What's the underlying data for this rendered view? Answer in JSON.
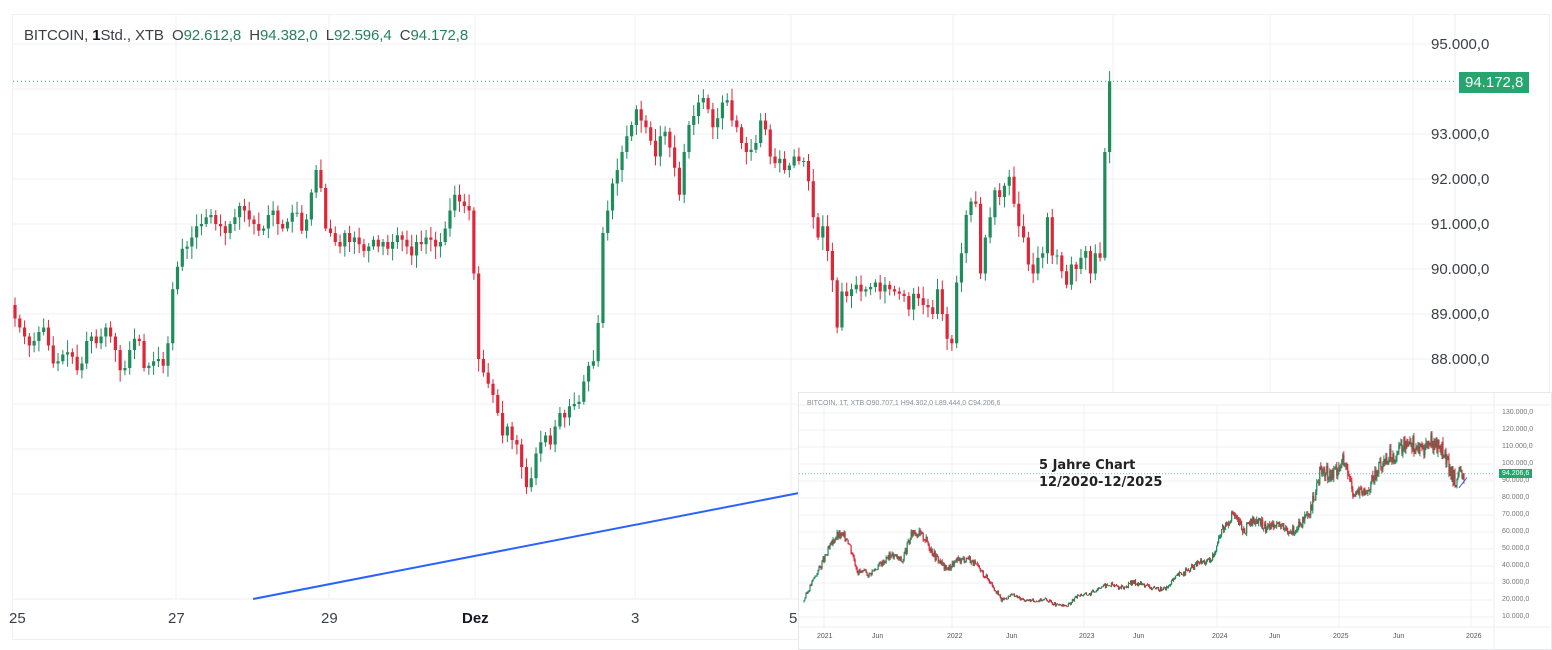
{
  "main": {
    "legend": {
      "symbol": "BITCOIN,",
      "interval_num": "1",
      "interval_unit": "Std.,",
      "source": "XTB",
      "o_label": "O",
      "o": "92.612,8",
      "h_label": "H",
      "h": "94.382,0",
      "l_label": "L",
      "l": "92.596,4",
      "c_label": "C",
      "c": "94.172,8"
    },
    "last_price": "94.172,8",
    "price_axis": [
      "95.000,0",
      "93.000,0",
      "92.000,0",
      "91.000,0",
      "90.000,0",
      "89.000,0",
      "88.000,0"
    ],
    "time_axis": [
      "25",
      "27",
      "29",
      "Dez",
      "3",
      "5"
    ]
  },
  "inset": {
    "legend": "BITCOIN, 1T, XTB O90.707,1 H94.302,0 L89.444,0 C94.206,6",
    "last_price": "94.206,6",
    "price_axis": [
      "130.000,0",
      "120.000,0",
      "110.000,0",
      "100.000,0",
      "90.000,0",
      "80.000,0",
      "70.000,0",
      "60.000,0",
      "50.000,0",
      "40.000,0",
      "30.000,0",
      "20.000,0",
      "10.000,0"
    ],
    "time_axis": [
      "2021",
      "Jun",
      "2022",
      "Jun",
      "2023",
      "Jun",
      "2024",
      "Jun",
      "2025",
      "Jun",
      "2026"
    ],
    "annotation_line1": "5 Jahre Chart",
    "annotation_line2": "12/2020-12/2025"
  },
  "colors": {
    "up": "#1f8c5c",
    "down": "#dc2738",
    "trendline": "#2962ff",
    "last_price_bg": "#26a66e",
    "grid": "#f0f1f3"
  },
  "chart_data": [
    {
      "type": "candlestick",
      "title": "BITCOIN, 1Std., XTB",
      "xlabel": "",
      "ylabel": "",
      "ylim": [
        87400,
        95600
      ],
      "grid": true,
      "x_ticks": [
        "25",
        "27",
        "29",
        "Dez",
        "3",
        "5"
      ],
      "y_ticks": [
        95000,
        93000,
        92000,
        91000,
        90000,
        89000,
        88000
      ],
      "last": {
        "open": 92612.8,
        "high": 94382.0,
        "low": 92596.4,
        "close": 94172.8
      },
      "close_series": [
        88900,
        88700,
        88500,
        88300,
        88400,
        88600,
        88700,
        88300,
        87900,
        87950,
        88100,
        88150,
        88050,
        87750,
        87900,
        88400,
        88500,
        88350,
        88500,
        88700,
        88500,
        88200,
        87750,
        87800,
        88200,
        88450,
        88400,
        87800,
        87850,
        87950,
        88000,
        87850,
        88350,
        89550,
        90050,
        90450,
        90500,
        90700,
        90950,
        91000,
        91150,
        91200,
        91000,
        90950,
        90800,
        91000,
        91150,
        91400,
        91300,
        91100,
        91000,
        90850,
        90900,
        91200,
        91300,
        91000,
        90900,
        91050,
        91250,
        91250,
        90850,
        91100,
        91700,
        92200,
        91800,
        90900,
        90800,
        90600,
        90500,
        90800,
        90600,
        90700,
        90550,
        90400,
        90500,
        90650,
        90500,
        90600,
        90450,
        90600,
        90750,
        90650,
        90500,
        90300,
        90600,
        90550,
        90700,
        90650,
        90500,
        90600,
        90900,
        91300,
        91650,
        91500,
        91400,
        91300,
        89900,
        88000,
        87700,
        87450,
        87200,
        86800,
        86300,
        86500,
        86200,
        86100,
        85600,
        85150,
        85350,
        85900,
        86150,
        86300,
        86100,
        86500,
        86800,
        86700,
        86950,
        87000,
        87050,
        87500,
        87850,
        87950,
        88800,
        90800,
        91300,
        91900,
        92200,
        92600,
        92950,
        93200,
        93550,
        93300,
        93150,
        92850,
        92500,
        92950,
        93050,
        92700,
        92250,
        91650,
        92600,
        93200,
        93400,
        93700,
        93800,
        93550,
        93150,
        93350,
        93700,
        93750,
        93300,
        93150,
        92800,
        92600,
        92650,
        92800,
        93300,
        93100,
        92500,
        92350,
        92450,
        92200,
        92300,
        92500,
        92400,
        92400,
        91950,
        91150,
        90700,
        90950,
        90400,
        89750,
        88700,
        89500,
        89400,
        89550,
        89650,
        89500,
        89550,
        89600,
        89700,
        89500,
        89650,
        89550,
        89500,
        89450,
        89400,
        89100,
        89450,
        89350,
        89200,
        89150,
        89000,
        89550,
        89000,
        88450,
        88350,
        89700,
        90350,
        91200,
        91500,
        91450,
        89900,
        90700,
        91150,
        91750,
        91600,
        91850,
        92050,
        91450,
        90950,
        90700,
        90100,
        89900,
        90250,
        90350,
        91150,
        90300,
        90300,
        89950,
        89650,
        90100,
        90000,
        90250,
        90400,
        89900,
        90350,
        90250,
        92600,
        94172.8
      ]
    },
    {
      "type": "candlestick",
      "title": "BITCOIN, 1T, XTB (5 Jahre Chart 12/2020-12/2025)",
      "ylim": [
        5000,
        135000
      ],
      "x_ticks": [
        "2021",
        "Jun",
        "2022",
        "Jun",
        "2023",
        "Jun",
        "2024",
        "Jun",
        "2025",
        "Jun",
        "2026"
      ],
      "y_ticks": [
        130000,
        120000,
        110000,
        100000,
        90000,
        80000,
        70000,
        60000,
        50000,
        40000,
        30000,
        20000,
        10000
      ],
      "monthly_close_approx": {
        "2020-12": 19000,
        "2021-01": 33000,
        "2021-02": 45000,
        "2021-03": 58000,
        "2021-04": 57000,
        "2021-05": 37000,
        "2021-06": 35000,
        "2021-07": 41000,
        "2021-08": 47000,
        "2021-09": 43000,
        "2021-10": 61000,
        "2021-11": 57000,
        "2021-12": 46000,
        "2022-01": 38000,
        "2022-02": 43000,
        "2022-03": 45000,
        "2022-04": 38000,
        "2022-05": 31000,
        "2022-06": 20000,
        "2022-07": 23000,
        "2022-08": 20000,
        "2022-09": 19500,
        "2022-10": 20500,
        "2022-11": 17000,
        "2022-12": 16500,
        "2023-01": 23000,
        "2023-02": 23500,
        "2023-03": 28000,
        "2023-04": 29000,
        "2023-05": 27000,
        "2023-06": 30500,
        "2023-07": 29000,
        "2023-08": 26000,
        "2023-09": 27000,
        "2023-10": 34500,
        "2023-11": 37500,
        "2023-12": 42500,
        "2024-01": 42500,
        "2024-02": 61000,
        "2024-03": 71000,
        "2024-04": 60500,
        "2024-05": 67500,
        "2024-06": 62500,
        "2024-07": 66000,
        "2024-08": 59000,
        "2024-09": 63500,
        "2024-10": 70000,
        "2024-11": 96500,
        "2024-12": 93500,
        "2025-01": 102000,
        "2025-02": 84000,
        "2025-03": 82500,
        "2025-04": 94000,
        "2025-05": 104500,
        "2025-06": 107000,
        "2025-07": 115500,
        "2025-08": 108000,
        "2025-09": 114000,
        "2025-10": 109500,
        "2025-11": 90500,
        "2025-12": 94206.6
      },
      "annotation": "5 Jahre Chart 12/2020-12/2025"
    }
  ]
}
